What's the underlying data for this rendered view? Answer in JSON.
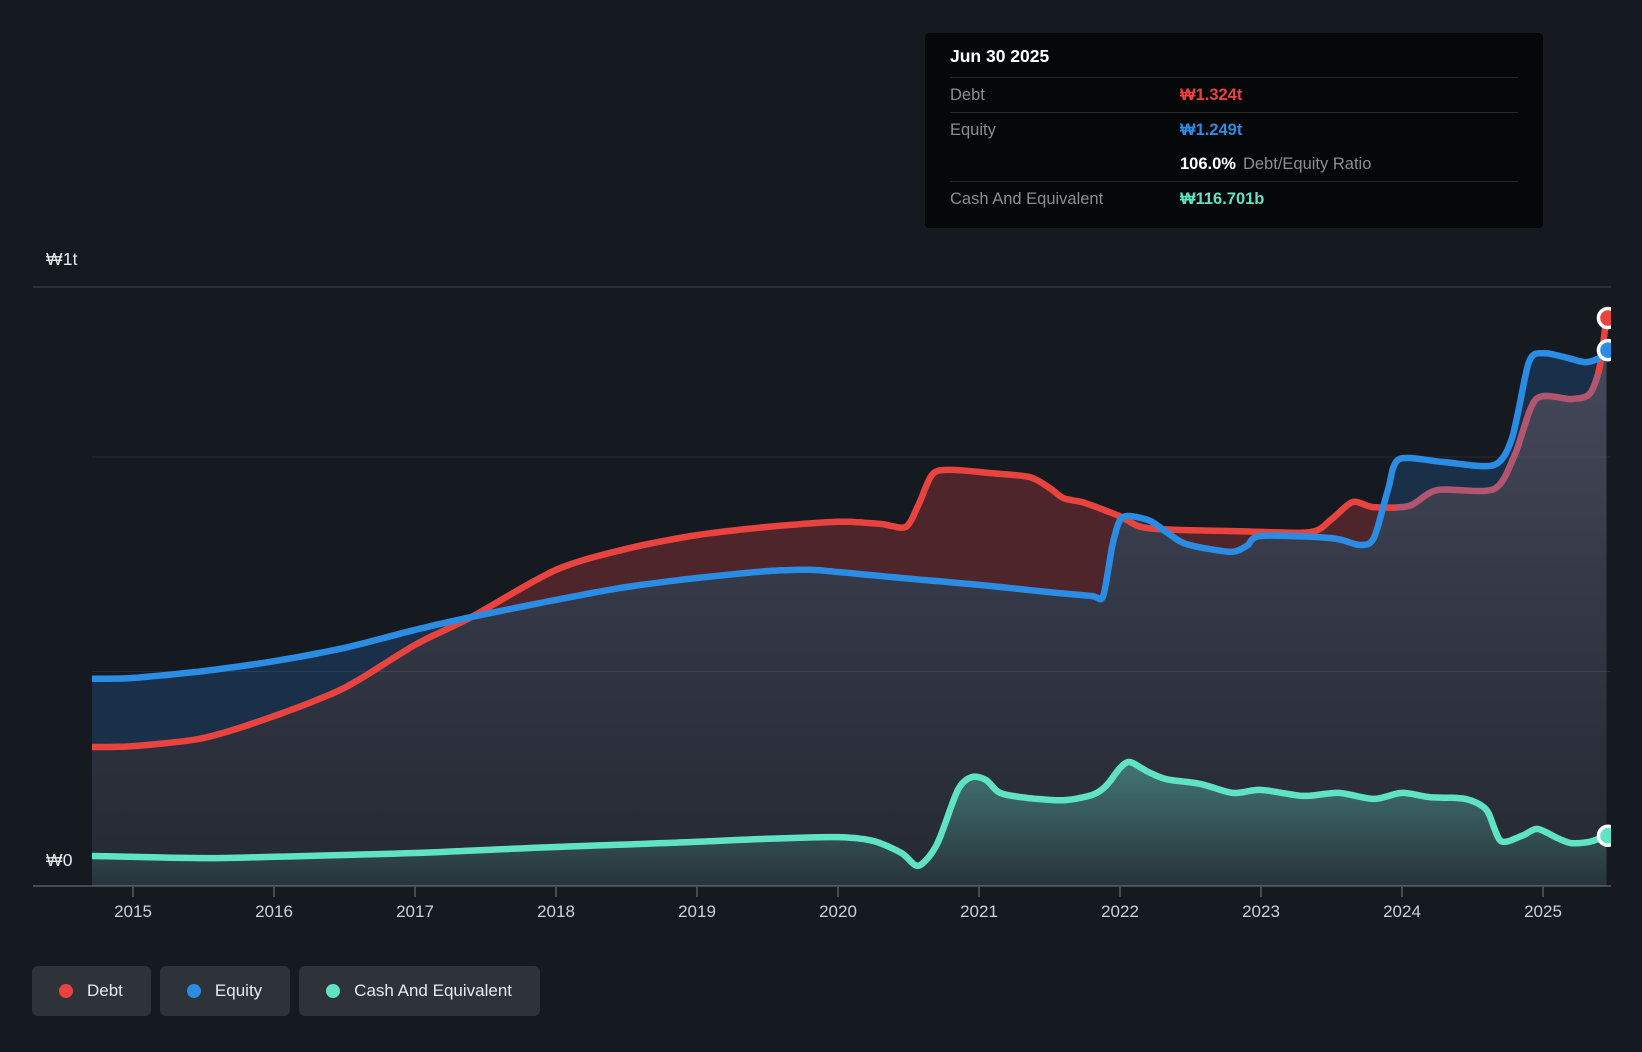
{
  "tooltip": {
    "date": "Jun 30 2025",
    "debt_label": "Debt",
    "debt_value": "₩1.324t",
    "equity_label": "Equity",
    "equity_value": "₩1.249t",
    "ratio_value": "106.0%",
    "ratio_label": "Debt/Equity Ratio",
    "cash_label": "Cash And Equivalent",
    "cash_value": "₩116.701b"
  },
  "y_axis": {
    "top": "₩1t",
    "zero": "₩0"
  },
  "x_axis": {
    "years": [
      "2015",
      "2016",
      "2017",
      "2018",
      "2019",
      "2020",
      "2021",
      "2022",
      "2023",
      "2024",
      "2025"
    ]
  },
  "legend": {
    "items": [
      {
        "label": "Debt",
        "color": "#e8433f"
      },
      {
        "label": "Equity",
        "color": "#2b8ce4"
      },
      {
        "label": "Cash And Equivalent",
        "color": "#5fe3c4"
      }
    ]
  },
  "colors": {
    "page_bg": "#151a21",
    "tooltip_bg": "#060708",
    "debt": "#e8433f",
    "debt_muted": "#b2566f",
    "equity": "#2b8ce4",
    "cash": "#5fe3c4",
    "fill_debt_band": "rgba(233,69,66,0.27)",
    "fill_equity_band": "rgba(45,140,228,0.20)",
    "fill_equity_under_top": "rgba(158,160,196,0.38)",
    "fill_equity_under_bottom": "rgba(118,120,148,0.16)",
    "fill_cash_top": "rgba(98,224,197,0.42)",
    "fill_cash_bottom": "rgba(98,224,197,0.05)"
  },
  "chart_data": {
    "type": "area",
    "y_unit": "KRW trillions",
    "x_range": [
      2014.71,
      2025.45
    ],
    "ylim": [
      0,
      1.4
    ],
    "grid_values": [
      1.0,
      0.5,
      0
    ],
    "legend_position": "bottom-left",
    "last_point_date": "Jun 30 2025",
    "series": [
      {
        "name": "Debt",
        "color": "#e8433f",
        "points": [
          [
            2014.71,
            0.324
          ],
          [
            2015,
            0.326
          ],
          [
            2015.5,
            0.345
          ],
          [
            2016,
            0.396
          ],
          [
            2016.5,
            0.462
          ],
          [
            2017,
            0.562
          ],
          [
            2017.4,
            0.627
          ],
          [
            2018,
            0.737
          ],
          [
            2018.5,
            0.786
          ],
          [
            2019,
            0.818
          ],
          [
            2019.5,
            0.837
          ],
          [
            2020,
            0.849
          ],
          [
            2020.3,
            0.844
          ],
          [
            2020.48,
            0.837
          ],
          [
            2020.57,
            0.888
          ],
          [
            2020.67,
            0.96
          ],
          [
            2020.8,
            0.97
          ],
          [
            2021.1,
            0.962
          ],
          [
            2021.36,
            0.953
          ],
          [
            2021.5,
            0.928
          ],
          [
            2021.6,
            0.904
          ],
          [
            2021.75,
            0.893
          ],
          [
            2022,
            0.862
          ],
          [
            2022.2,
            0.834
          ],
          [
            2022.85,
            0.827
          ],
          [
            2023.35,
            0.825
          ],
          [
            2023.5,
            0.855
          ],
          [
            2023.65,
            0.895
          ],
          [
            2023.8,
            0.883
          ],
          [
            2024.05,
            0.886
          ],
          [
            2024.25,
            0.923
          ],
          [
            2024.65,
            0.925
          ],
          [
            2024.8,
            1.005
          ],
          [
            2024.95,
            1.135
          ],
          [
            2025.2,
            1.135
          ],
          [
            2025.33,
            1.147
          ],
          [
            2025.4,
            1.207
          ],
          [
            2025.45,
            1.324
          ]
        ]
      },
      {
        "name": "Equity",
        "color": "#2b8ce4",
        "points": [
          [
            2014.71,
            0.483
          ],
          [
            2015,
            0.485
          ],
          [
            2015.5,
            0.501
          ],
          [
            2016,
            0.524
          ],
          [
            2016.5,
            0.555
          ],
          [
            2017,
            0.597
          ],
          [
            2017.4,
            0.627
          ],
          [
            2018,
            0.667
          ],
          [
            2018.5,
            0.697
          ],
          [
            2019,
            0.718
          ],
          [
            2019.5,
            0.734
          ],
          [
            2019.8,
            0.737
          ],
          [
            2020,
            0.732
          ],
          [
            2020.45,
            0.718
          ],
          [
            2021,
            0.702
          ],
          [
            2021.5,
            0.685
          ],
          [
            2021.8,
            0.676
          ],
          [
            2021.88,
            0.676
          ],
          [
            2021.95,
            0.8
          ],
          [
            2022.02,
            0.86
          ],
          [
            2022.2,
            0.853
          ],
          [
            2022.33,
            0.825
          ],
          [
            2022.47,
            0.797
          ],
          [
            2022.78,
            0.779
          ],
          [
            2022.9,
            0.793
          ],
          [
            2023,
            0.816
          ],
          [
            2023.5,
            0.811
          ],
          [
            2023.7,
            0.795
          ],
          [
            2023.8,
            0.811
          ],
          [
            2023.9,
            0.923
          ],
          [
            2023.98,
            0.995
          ],
          [
            2024.3,
            0.988
          ],
          [
            2024.65,
            0.981
          ],
          [
            2024.78,
            1.044
          ],
          [
            2024.9,
            1.221
          ],
          [
            2025,
            1.242
          ],
          [
            2025.15,
            1.233
          ],
          [
            2025.3,
            1.221
          ],
          [
            2025.4,
            1.231
          ],
          [
            2025.45,
            1.249
          ]
        ]
      },
      {
        "name": "Cash And Equivalent",
        "color": "#5fe3c4",
        "points": [
          [
            2014.71,
            0.07
          ],
          [
            2015.5,
            0.065
          ],
          [
            2016,
            0.068
          ],
          [
            2017,
            0.077
          ],
          [
            2017.5,
            0.084
          ],
          [
            2018,
            0.091
          ],
          [
            2018.6,
            0.098
          ],
          [
            2019,
            0.103
          ],
          [
            2019.5,
            0.11
          ],
          [
            2020,
            0.114
          ],
          [
            2020.25,
            0.105
          ],
          [
            2020.45,
            0.077
          ],
          [
            2020.57,
            0.047
          ],
          [
            2020.7,
            0.096
          ],
          [
            2020.85,
            0.224
          ],
          [
            2020.95,
            0.254
          ],
          [
            2021.05,
            0.247
          ],
          [
            2021.15,
            0.217
          ],
          [
            2021.35,
            0.205
          ],
          [
            2021.6,
            0.2
          ],
          [
            2021.8,
            0.212
          ],
          [
            2021.9,
            0.233
          ],
          [
            2022,
            0.275
          ],
          [
            2022.07,
            0.289
          ],
          [
            2022.2,
            0.266
          ],
          [
            2022.33,
            0.249
          ],
          [
            2022.57,
            0.238
          ],
          [
            2022.8,
            0.217
          ],
          [
            2023,
            0.224
          ],
          [
            2023.3,
            0.21
          ],
          [
            2023.55,
            0.217
          ],
          [
            2023.8,
            0.203
          ],
          [
            2024,
            0.217
          ],
          [
            2024.2,
            0.207
          ],
          [
            2024.45,
            0.203
          ],
          [
            2024.6,
            0.177
          ],
          [
            2024.7,
            0.105
          ],
          [
            2024.85,
            0.117
          ],
          [
            2024.96,
            0.133
          ],
          [
            2025.1,
            0.112
          ],
          [
            2025.2,
            0.1
          ],
          [
            2025.33,
            0.103
          ],
          [
            2025.45,
            0.117
          ]
        ]
      }
    ]
  }
}
